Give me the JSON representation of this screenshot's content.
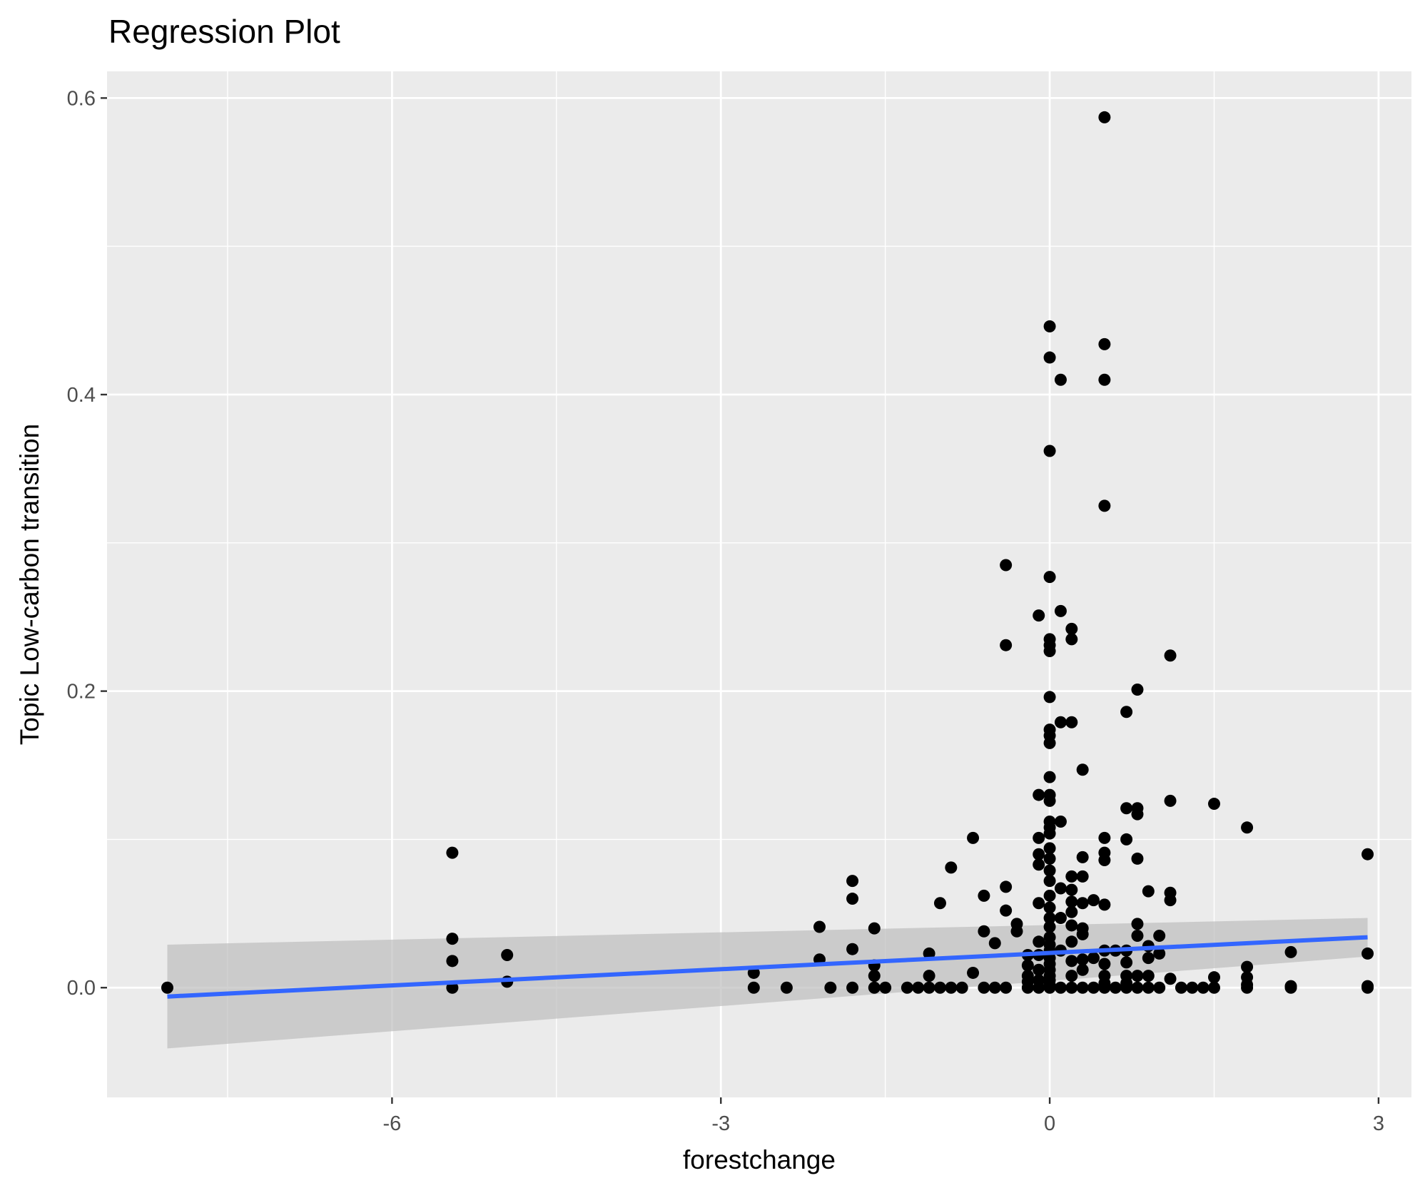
{
  "chart_data": {
    "type": "scatter",
    "title": "Regression Plot",
    "xlabel": "forestchange",
    "ylabel": "Topic Low-carbon transition",
    "xlim": [
      -8.6,
      3.3
    ],
    "ylim": [
      -0.074,
      0.618
    ],
    "x_ticks": [
      -6,
      -3,
      0,
      3
    ],
    "x_tick_labels": [
      "-6",
      "-3",
      "0",
      "3"
    ],
    "y_ticks": [
      0.0,
      0.2,
      0.4,
      0.6
    ],
    "y_tick_labels": [
      "0.0",
      "0.2",
      "0.4",
      "0.6"
    ],
    "x_minor_ticks": [
      -7.5,
      -4.5,
      -1.5,
      1.5
    ],
    "y_minor_ticks": [
      0.1,
      0.3,
      0.5
    ],
    "grid": true,
    "legend": "none",
    "colors": {
      "panel_background": "#ebebeb",
      "grid": "#ffffff",
      "points": "#000000",
      "fit_line": "#3366ff",
      "confidence_band": "#bdbdbd"
    },
    "regression": {
      "x": [
        -8.05,
        2.9
      ],
      "y": [
        -0.006,
        0.034
      ],
      "ci_lower": [
        -0.041,
        0.021
      ],
      "ci_upper": [
        0.029,
        0.047
      ]
    },
    "points": {
      "x": [
        -8.05,
        -5.45,
        -5.45,
        -5.45,
        -5.45,
        -4.95,
        -4.95,
        -2.7,
        -2.7,
        -2.4,
        -2.1,
        -2.1,
        -2.0,
        -1.8,
        -1.8,
        -1.8,
        -1.8,
        -1.6,
        -1.6,
        -1.6,
        -1.6,
        -1.5,
        -1.3,
        -1.2,
        -1.1,
        -1.1,
        -1.1,
        -1.0,
        -1.0,
        -0.9,
        -0.9,
        -0.8,
        -0.7,
        -0.7,
        -0.6,
        -0.6,
        -0.6,
        -0.5,
        -0.5,
        -0.4,
        -0.4,
        -0.4,
        -0.4,
        -0.4,
        -0.3,
        -0.3,
        -0.2,
        -0.2,
        -0.2,
        -0.2,
        -0.2,
        -0.1,
        -0.1,
        -0.1,
        -0.1,
        -0.1,
        -0.1,
        -0.1,
        -0.1,
        -0.1,
        -0.1,
        -0.1,
        0.0,
        0.0,
        0.0,
        0.0,
        0.0,
        0.0,
        0.0,
        0.0,
        0.0,
        0.0,
        0.0,
        0.0,
        0.0,
        0.0,
        0.0,
        0.0,
        0.0,
        0.0,
        0.0,
        0.0,
        0.0,
        0.0,
        0.0,
        0.0,
        0.0,
        0.0,
        0.0,
        0.0,
        0.0,
        0.0,
        0.0,
        0.0,
        0.0,
        0.0,
        0.0,
        0.1,
        0.1,
        0.1,
        0.1,
        0.1,
        0.1,
        0.1,
        0.1,
        0.2,
        0.2,
        0.2,
        0.2,
        0.2,
        0.2,
        0.2,
        0.2,
        0.2,
        0.2,
        0.2,
        0.2,
        0.3,
        0.3,
        0.3,
        0.3,
        0.3,
        0.3,
        0.3,
        0.3,
        0.3,
        0.4,
        0.4,
        0.4,
        0.5,
        0.5,
        0.5,
        0.5,
        0.5,
        0.5,
        0.5,
        0.5,
        0.5,
        0.5,
        0.5,
        0.5,
        0.5,
        0.6,
        0.6,
        0.7,
        0.7,
        0.7,
        0.7,
        0.7,
        0.7,
        0.7,
        0.7,
        0.8,
        0.8,
        0.8,
        0.8,
        0.8,
        0.8,
        0.8,
        0.8,
        0.9,
        0.9,
        0.9,
        0.9,
        0.9,
        1.0,
        1.0,
        1.0,
        1.1,
        1.1,
        1.1,
        1.1,
        1.1,
        1.2,
        1.3,
        1.4,
        1.5,
        1.5,
        1.5,
        1.8,
        1.8,
        1.8,
        1.8,
        1.8,
        2.2,
        2.2,
        2.2,
        2.9,
        2.9,
        2.9,
        2.9
      ],
      "y": [
        0.0,
        0.091,
        0.033,
        0.018,
        0.0,
        0.022,
        0.004,
        0.01,
        0.0,
        0.0,
        0.041,
        0.019,
        0.0,
        0.072,
        0.06,
        0.026,
        0.0,
        0.04,
        0.015,
        0.008,
        0.0,
        0.0,
        0.0,
        0.0,
        0.023,
        0.008,
        0.0,
        0.057,
        0.0,
        0.081,
        0.0,
        0.0,
        0.101,
        0.01,
        0.0,
        0.062,
        0.038,
        0.0,
        0.03,
        0.285,
        0.231,
        0.068,
        0.052,
        0.0,
        0.043,
        0.038,
        0.022,
        0.015,
        0.008,
        0.004,
        0.0,
        0.251,
        0.13,
        0.101,
        0.09,
        0.083,
        0.057,
        0.031,
        0.022,
        0.012,
        0.005,
        0.0,
        0.446,
        0.425,
        0.362,
        0.277,
        0.235,
        0.231,
        0.227,
        0.196,
        0.174,
        0.17,
        0.165,
        0.142,
        0.13,
        0.126,
        0.112,
        0.108,
        0.104,
        0.094,
        0.087,
        0.079,
        0.072,
        0.062,
        0.054,
        0.047,
        0.041,
        0.034,
        0.029,
        0.025,
        0.02,
        0.016,
        0.012,
        0.008,
        0.005,
        0.002,
        0.0,
        0.41,
        0.254,
        0.179,
        0.112,
        0.067,
        0.047,
        0.025,
        0.0,
        0.242,
        0.235,
        0.179,
        0.075,
        0.066,
        0.058,
        0.051,
        0.042,
        0.031,
        0.018,
        0.008,
        0.0,
        0.147,
        0.088,
        0.075,
        0.057,
        0.04,
        0.036,
        0.019,
        0.012,
        0.0,
        0.059,
        0.02,
        0.0,
        0.587,
        0.434,
        0.41,
        0.325,
        0.101,
        0.091,
        0.086,
        0.056,
        0.025,
        0.016,
        0.008,
        0.003,
        0.0,
        0.025,
        0.0,
        0.186,
        0.121,
        0.1,
        0.025,
        0.017,
        0.008,
        0.003,
        0.0,
        0.201,
        0.121,
        0.117,
        0.087,
        0.043,
        0.035,
        0.008,
        0.0,
        0.065,
        0.028,
        0.02,
        0.008,
        0.0,
        0.035,
        0.023,
        0.0,
        0.224,
        0.126,
        0.064,
        0.059,
        0.006,
        0.0,
        0.0,
        0.0,
        0.124,
        0.007,
        0.0,
        0.108,
        0.014,
        0.007,
        0.002,
        0.0,
        0.024,
        0.001,
        0.0,
        0.09,
        0.023,
        0.001,
        0.0
      ]
    }
  }
}
